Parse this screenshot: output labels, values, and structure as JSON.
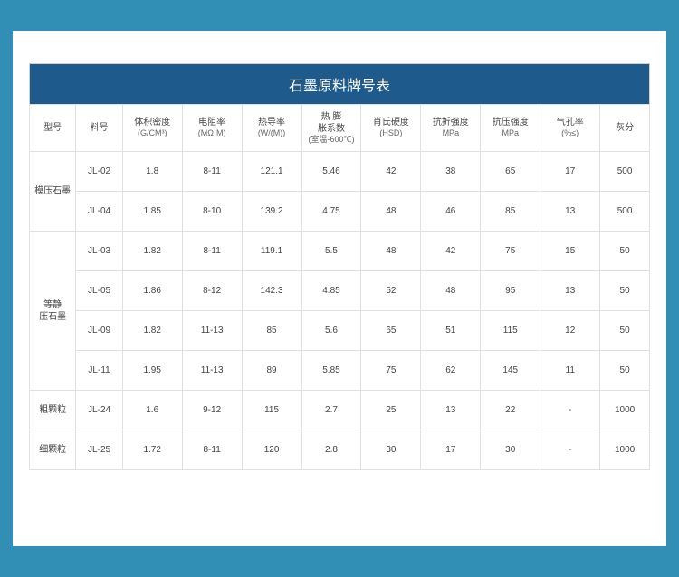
{
  "title": "石墨原料牌号表",
  "colors": {
    "frame": "#318fb5",
    "titlebar_bg": "#1e5b8c",
    "titlebar_fg": "#ffffff",
    "border": "#e0e0e0",
    "text": "#444444"
  },
  "columns": [
    {
      "label": "型号",
      "unit": ""
    },
    {
      "label": "料号",
      "unit": ""
    },
    {
      "label": "体积密度",
      "unit": "(G/CM³)"
    },
    {
      "label": "电阻率",
      "unit": "(MΩ·M)"
    },
    {
      "label": "热导率",
      "unit": "(W/(M))"
    },
    {
      "label": "热 膨\n胀系数",
      "unit": "(室温-600℃)"
    },
    {
      "label": "肖氏硬度",
      "unit": "(HSD)"
    },
    {
      "label": "抗折强度",
      "unit": "MPa"
    },
    {
      "label": "抗压强度",
      "unit": "MPa"
    },
    {
      "label": "气孔率",
      "unit": "(%≤)"
    },
    {
      "label": "灰分",
      "unit": ""
    }
  ],
  "groups": [
    {
      "type_label": "模压石墨",
      "rows": [
        {
          "code": "JL-02",
          "density": "1.8",
          "resist": "8-11",
          "thermal": "121.1",
          "expand": "5.46",
          "hardness": "42",
          "flex": "38",
          "comp": "65",
          "porosity": "17",
          "ash": "500"
        },
        {
          "code": "JL-04",
          "density": "1.85",
          "resist": "8-10",
          "thermal": "139.2",
          "expand": "4.75",
          "hardness": "48",
          "flex": "46",
          "comp": "85",
          "porosity": "13",
          "ash": "500"
        }
      ]
    },
    {
      "type_label": "等静\n压石墨",
      "rows": [
        {
          "code": "JL-03",
          "density": "1.82",
          "resist": "8-11",
          "thermal": "119.1",
          "expand": "5.5",
          "hardness": "48",
          "flex": "42",
          "comp": "75",
          "porosity": "15",
          "ash": "50"
        },
        {
          "code": "JL-05",
          "density": "1.86",
          "resist": "8-12",
          "thermal": "142.3",
          "expand": "4.85",
          "hardness": "52",
          "flex": "48",
          "comp": "95",
          "porosity": "13",
          "ash": "50"
        },
        {
          "code": "JL-09",
          "density": "1.82",
          "resist": "11-13",
          "thermal": "85",
          "expand": "5.6",
          "hardness": "65",
          "flex": "51",
          "comp": "115",
          "porosity": "12",
          "ash": "50"
        },
        {
          "code": "JL-11",
          "density": "1.95",
          "resist": "11-13",
          "thermal": "89",
          "expand": "5.85",
          "hardness": "75",
          "flex": "62",
          "comp": "145",
          "porosity": "11",
          "ash": "50"
        }
      ]
    },
    {
      "type_label": "粗颗粒",
      "rows": [
        {
          "code": "JL-24",
          "density": "1.6",
          "resist": "9-12",
          "thermal": "115",
          "expand": "2.7",
          "hardness": "25",
          "flex": "13",
          "comp": "22",
          "porosity": "-",
          "ash": "1000"
        }
      ]
    },
    {
      "type_label": "细颗粒",
      "rows": [
        {
          "code": "JL-25",
          "density": "1.72",
          "resist": "8-11",
          "thermal": "120",
          "expand": "2.8",
          "hardness": "30",
          "flex": "17",
          "comp": "30",
          "porosity": "-",
          "ash": "1000"
        }
      ]
    }
  ]
}
